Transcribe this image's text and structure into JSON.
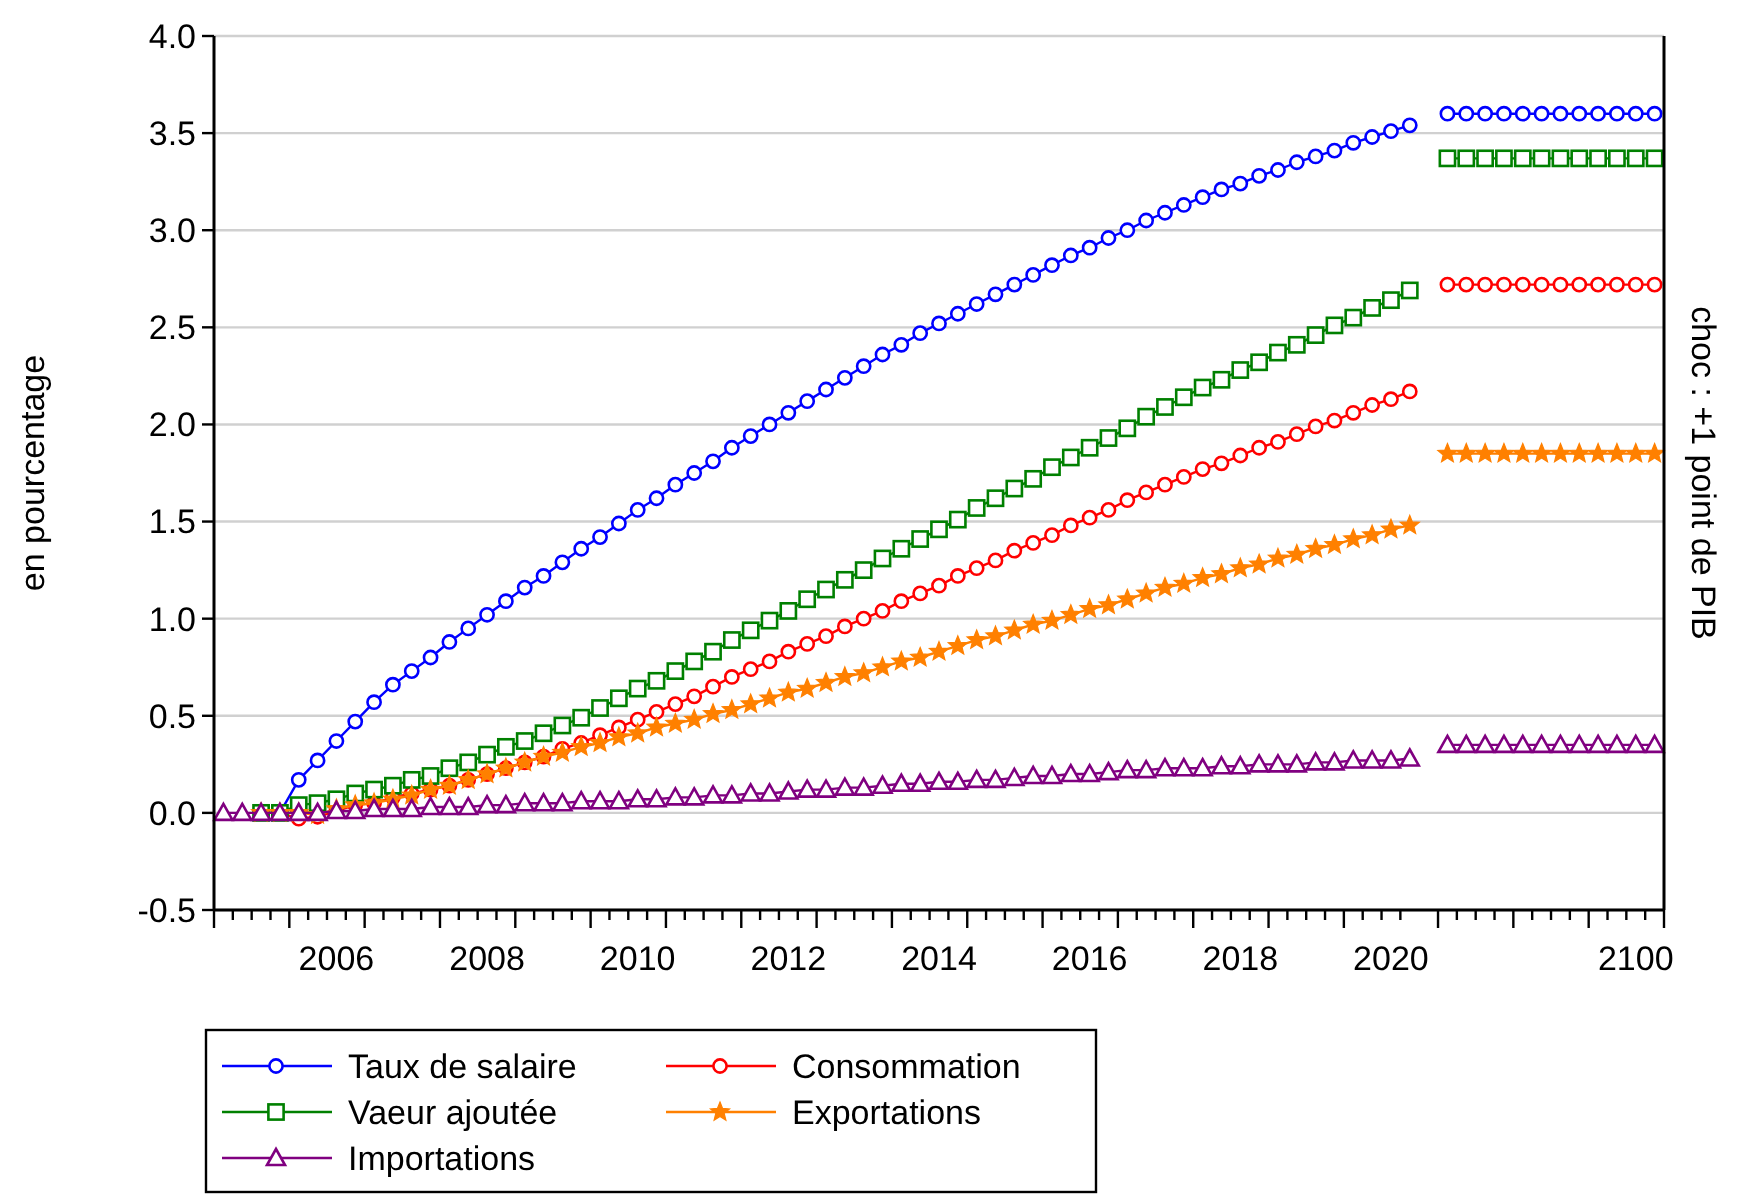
{
  "chart_data": {
    "type": "line",
    "ylabel": "en pourcentage",
    "annotations": [
      "choc : +1 point de PIB"
    ],
    "categories": [
      null,
      null,
      null,
      null,
      null,
      null,
      "2006",
      null,
      null,
      null,
      null,
      null,
      null,
      null,
      "2008",
      null,
      null,
      null,
      null,
      null,
      null,
      null,
      "2010",
      null,
      null,
      null,
      null,
      null,
      null,
      null,
      "2012",
      null,
      null,
      null,
      null,
      null,
      null,
      null,
      "2014",
      null,
      null,
      null,
      null,
      null,
      null,
      null,
      "2016",
      null,
      null,
      null,
      null,
      null,
      null,
      null,
      "2018",
      null,
      null,
      null,
      null,
      null,
      null,
      null,
      "2020",
      null,
      null,
      null,
      null,
      null,
      null,
      null,
      null,
      null,
      null,
      null,
      null,
      "2100",
      null
    ],
    "ylim": [
      -0.5,
      4.0
    ],
    "yticks": [
      {
        "value": -0.5,
        "label": "-0.5"
      },
      {
        "value": 0,
        "label": "0.0"
      },
      {
        "value": 0.5,
        "label": "0.5"
      },
      {
        "value": 1,
        "label": "1.0"
      },
      {
        "value": 1.5,
        "label": "1.5"
      },
      {
        "value": 2,
        "label": "2.0"
      },
      {
        "value": 2.5,
        "label": "2.5"
      },
      {
        "value": 3,
        "label": "3.0"
      },
      {
        "value": 3.5,
        "label": "3.5"
      },
      {
        "value": 4,
        "label": "4.0"
      }
    ],
    "grid": "y",
    "legend": "bottom left",
    "series": [
      {
        "name": "Taux de salaire",
        "color": "#0000ff",
        "marker": "circle",
        "values": [
          null,
          null,
          0,
          0,
          0.17,
          0.27,
          0.37,
          0.47,
          0.57,
          0.66,
          0.73,
          0.8,
          0.88,
          0.95,
          1.02,
          1.09,
          1.16,
          1.22,
          1.29,
          1.36,
          1.42,
          1.49,
          1.56,
          1.62,
          1.69,
          1.75,
          1.81,
          1.88,
          1.94,
          2.0,
          2.06,
          2.12,
          2.18,
          2.24,
          2.3,
          2.36,
          2.41,
          2.47,
          2.52,
          2.57,
          2.62,
          2.67,
          2.72,
          2.77,
          2.82,
          2.87,
          2.91,
          2.96,
          3.0,
          3.05,
          3.09,
          3.13,
          3.17,
          3.21,
          3.24,
          3.28,
          3.31,
          3.35,
          3.38,
          3.41,
          3.45,
          3.48,
          3.51,
          3.54,
          null,
          3.6,
          3.6,
          3.6,
          3.6,
          3.6,
          3.6,
          3.6,
          3.6,
          3.6,
          3.6,
          3.6,
          3.6
        ]
      },
      {
        "name": "Consommation",
        "color": "#ff0000",
        "marker": "circle",
        "values": [
          null,
          null,
          0,
          0,
          -0.03,
          -0.02,
          0.01,
          0.04,
          0.05,
          0.08,
          0.1,
          0.12,
          0.14,
          0.17,
          0.2,
          0.23,
          0.26,
          0.29,
          0.33,
          0.36,
          0.4,
          0.44,
          0.48,
          0.52,
          0.56,
          0.6,
          0.65,
          0.7,
          0.74,
          0.78,
          0.83,
          0.87,
          0.91,
          0.96,
          1.0,
          1.04,
          1.09,
          1.13,
          1.17,
          1.22,
          1.26,
          1.3,
          1.35,
          1.39,
          1.43,
          1.48,
          1.52,
          1.56,
          1.61,
          1.65,
          1.69,
          1.73,
          1.77,
          1.8,
          1.84,
          1.88,
          1.91,
          1.95,
          1.99,
          2.02,
          2.06,
          2.1,
          2.13,
          2.17,
          null,
          2.72,
          2.72,
          2.72,
          2.72,
          2.72,
          2.72,
          2.72,
          2.72,
          2.72,
          2.72,
          2.72,
          2.72
        ]
      },
      {
        "name": "Vaeur ajoutée",
        "color": "#008000",
        "marker": "square",
        "values": [
          null,
          null,
          0,
          0,
          0.04,
          0.05,
          0.07,
          0.1,
          0.12,
          0.14,
          0.17,
          0.19,
          0.23,
          0.26,
          0.3,
          0.34,
          0.37,
          0.41,
          0.45,
          0.49,
          0.54,
          0.59,
          0.64,
          0.68,
          0.73,
          0.78,
          0.83,
          0.89,
          0.94,
          0.99,
          1.04,
          1.1,
          1.15,
          1.2,
          1.25,
          1.31,
          1.36,
          1.41,
          1.46,
          1.51,
          1.57,
          1.62,
          1.67,
          1.72,
          1.78,
          1.83,
          1.88,
          1.93,
          1.98,
          2.04,
          2.09,
          2.14,
          2.19,
          2.23,
          2.28,
          2.32,
          2.37,
          2.41,
          2.46,
          2.51,
          2.55,
          2.6,
          2.64,
          2.69,
          null,
          3.37,
          3.37,
          3.37,
          3.37,
          3.37,
          3.37,
          3.37,
          3.37,
          3.37,
          3.37,
          3.37,
          3.37
        ]
      },
      {
        "name": "Exportations",
        "color": "#ff8000",
        "marker": "star",
        "values": [
          null,
          null,
          0,
          0,
          0,
          -0.01,
          0.02,
          0.04,
          0.05,
          0.07,
          0.09,
          0.12,
          0.14,
          0.17,
          0.2,
          0.23,
          0.26,
          0.29,
          0.31,
          0.34,
          0.36,
          0.39,
          0.41,
          0.44,
          0.46,
          0.48,
          0.51,
          0.53,
          0.56,
          0.59,
          0.62,
          0.64,
          0.67,
          0.7,
          0.72,
          0.75,
          0.78,
          0.8,
          0.83,
          0.86,
          0.89,
          0.91,
          0.94,
          0.97,
          0.99,
          1.02,
          1.05,
          1.07,
          1.1,
          1.13,
          1.16,
          1.18,
          1.21,
          1.23,
          1.26,
          1.28,
          1.31,
          1.33,
          1.36,
          1.38,
          1.41,
          1.43,
          1.46,
          1.48,
          null,
          1.85,
          1.85,
          1.85,
          1.85,
          1.85,
          1.85,
          1.85,
          1.85,
          1.85,
          1.85,
          1.85,
          1.85
        ]
      },
      {
        "name": "Importations",
        "color": "#800080",
        "marker": "triangle",
        "values": [
          0,
          0,
          0,
          0,
          0,
          0.0,
          0.01,
          0.01,
          0.02,
          0.02,
          0.02,
          0.03,
          0.03,
          0.03,
          0.04,
          0.04,
          0.05,
          0.05,
          0.05,
          0.06,
          0.06,
          0.06,
          0.07,
          0.07,
          0.08,
          0.08,
          0.09,
          0.09,
          0.1,
          0.1,
          0.11,
          0.12,
          0.12,
          0.13,
          0.13,
          0.14,
          0.15,
          0.15,
          0.16,
          0.16,
          0.17,
          0.17,
          0.18,
          0.19,
          0.19,
          0.2,
          0.2,
          0.21,
          0.22,
          0.22,
          0.23,
          0.23,
          0.23,
          0.24,
          0.24,
          0.25,
          0.25,
          0.25,
          0.26,
          0.26,
          0.27,
          0.27,
          0.27,
          0.28,
          null,
          0.35,
          0.35,
          0.35,
          0.35,
          0.35,
          0.35,
          0.35,
          0.35,
          0.35,
          0.35,
          0.35,
          0.35
        ]
      }
    ]
  }
}
